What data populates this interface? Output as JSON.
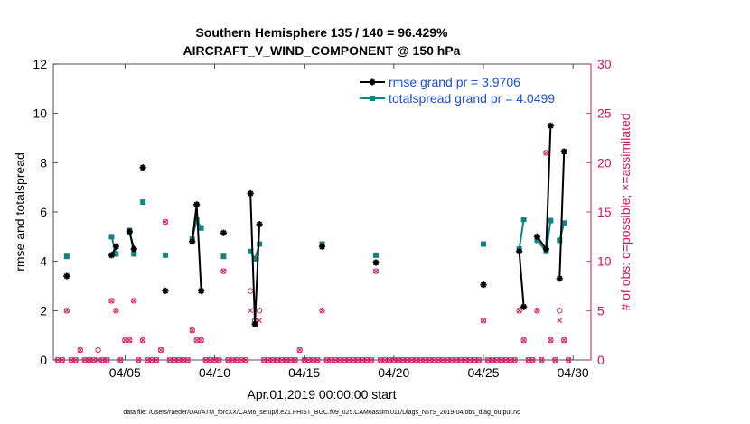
{
  "chart_data": {
    "type": "line",
    "title": [
      "Southern Hemisphere 135 / 140 = 96.429%",
      "AIRCRAFT_V_WIND_COMPONENT @ 150 hPa"
    ],
    "xlabel": "Apr.01,2019 00:00:00 start",
    "ylabel_left": "rmse and totalspread",
    "ylabel_right": "# of obs: o=possible; ×=assimilated",
    "footer": "data file: /Users/raeder/DAI/ATM_forcXX/CAM6_setup/f.e21.FHIST_BGC.f09_025.CAM6assim.011/Diags_NTrS_2019-04/obs_diag_output.nc",
    "xlim": [
      1.0,
      31.0
    ],
    "ylim_left": [
      0,
      12
    ],
    "ylim_right": [
      0,
      30
    ],
    "x_ticks": [
      5,
      10,
      15,
      20,
      25,
      30
    ],
    "x_tick_labels": [
      "04/05",
      "04/10",
      "04/15",
      "04/20",
      "04/25",
      "04/30"
    ],
    "y_ticks_left": [
      0,
      2,
      4,
      6,
      8,
      10,
      12
    ],
    "y_ticks_right": [
      0,
      5,
      10,
      15,
      20,
      25,
      30
    ],
    "colors": {
      "rmse": "#000000",
      "spread": "#0f8484",
      "obs": "#d6125e",
      "legend_text": "#1a4fd0"
    },
    "legend": [
      {
        "name": "rmse grand pr = 3.9706"
      },
      {
        "name": "totalspread grand pr = 4.0499"
      }
    ],
    "series": [
      {
        "name": "rmse",
        "points": [
          [
            1.75,
            3.4
          ],
          null,
          [
            4.25,
            4.25
          ],
          [
            4.5,
            4.6
          ],
          null,
          [
            5.25,
            5.2
          ],
          [
            5.5,
            4.5
          ],
          null,
          [
            6,
            7.8
          ],
          null,
          [
            7.25,
            2.8
          ],
          null,
          [
            8.75,
            4.8
          ],
          [
            9,
            6.3
          ],
          [
            9.25,
            2.8
          ],
          null,
          [
            10.5,
            5.15
          ],
          null,
          [
            12,
            6.75
          ],
          [
            12.25,
            1.45
          ],
          [
            12.5,
            5.5
          ],
          null,
          [
            16,
            4.6
          ],
          null,
          [
            19,
            3.95
          ],
          null,
          [
            25,
            3.05
          ],
          null,
          [
            27,
            4.4
          ],
          [
            27.25,
            2.15
          ],
          null,
          [
            28,
            5
          ],
          [
            28.5,
            4.5
          ],
          [
            28.75,
            9.5
          ],
          null,
          [
            29.25,
            3.3
          ],
          [
            29.5,
            8.45
          ]
        ]
      },
      {
        "name": "totalspread",
        "points": [
          [
            1.75,
            4.2
          ],
          null,
          [
            4.25,
            5
          ],
          [
            4.5,
            4.3
          ],
          null,
          [
            5.25,
            5.25
          ],
          [
            5.5,
            4.3
          ],
          null,
          [
            6,
            6.4
          ],
          null,
          [
            7.25,
            4.25
          ],
          null,
          [
            8.75,
            4.9
          ],
          [
            9,
            5.7
          ],
          [
            9.25,
            5.35
          ],
          null,
          [
            10.5,
            4.2
          ],
          null,
          [
            12,
            4.4
          ],
          [
            12.25,
            4.1
          ],
          [
            12.5,
            4.7
          ],
          null,
          [
            16,
            4.7
          ],
          null,
          [
            19,
            4.25
          ],
          null,
          [
            25,
            4.7
          ],
          null,
          [
            27,
            4.5
          ],
          [
            27.25,
            5.7
          ],
          null,
          [
            28,
            4.85
          ],
          [
            28.5,
            4.4
          ],
          [
            28.75,
            5.65
          ],
          null,
          [
            29.25,
            4.85
          ],
          [
            29.5,
            5.55
          ]
        ]
      },
      {
        "name": "obs_possible",
        "points": [
          [
            1.25,
            0
          ],
          [
            1.5,
            0
          ],
          [
            1.75,
            5
          ],
          [
            2,
            0
          ],
          [
            2.25,
            0
          ],
          [
            2.5,
            1
          ],
          [
            2.75,
            0
          ],
          [
            3,
            0
          ],
          [
            3.25,
            0
          ],
          [
            3.5,
            1
          ],
          [
            3.75,
            0
          ],
          [
            4,
            0
          ],
          [
            4.25,
            6
          ],
          [
            4.5,
            5
          ],
          [
            4.75,
            0
          ],
          [
            5,
            2
          ],
          [
            5.25,
            2
          ],
          [
            5.5,
            6
          ],
          [
            5.75,
            0
          ],
          [
            6,
            2
          ],
          [
            6.25,
            0
          ],
          [
            6.5,
            0
          ],
          [
            6.75,
            0
          ],
          [
            7,
            1
          ],
          [
            7.25,
            14
          ],
          [
            7.5,
            0
          ],
          [
            7.75,
            0
          ],
          [
            8,
            0
          ],
          [
            8.25,
            0
          ],
          [
            8.5,
            0
          ],
          [
            8.75,
            3
          ],
          [
            9,
            2
          ],
          [
            9.25,
            2
          ],
          [
            9.5,
            0
          ],
          [
            9.75,
            0
          ],
          [
            10,
            0
          ],
          [
            10.25,
            0
          ],
          [
            10.5,
            9
          ],
          [
            10.75,
            0
          ],
          [
            11,
            0
          ],
          [
            11.25,
            0
          ],
          [
            11.5,
            0
          ],
          [
            11.75,
            0
          ],
          [
            12,
            7
          ],
          [
            12.25,
            4
          ],
          [
            12.5,
            5
          ],
          [
            12.75,
            0
          ],
          [
            13,
            0
          ],
          [
            13.25,
            0
          ],
          [
            13.5,
            0
          ],
          [
            13.75,
            0
          ],
          [
            14,
            0
          ],
          [
            14.25,
            0
          ],
          [
            14.5,
            0
          ],
          [
            14.75,
            1
          ],
          [
            15,
            0
          ],
          [
            15.25,
            0
          ],
          [
            15.5,
            0
          ],
          [
            15.75,
            0
          ],
          [
            16,
            5
          ],
          [
            16.25,
            0
          ],
          [
            16.5,
            0
          ],
          [
            16.75,
            0
          ],
          [
            17,
            0
          ],
          [
            17.25,
            0
          ],
          [
            17.5,
            0
          ],
          [
            17.75,
            0
          ],
          [
            18,
            0
          ],
          [
            18.25,
            0
          ],
          [
            18.5,
            0
          ],
          [
            18.75,
            0
          ],
          [
            19,
            9
          ],
          [
            19.25,
            0
          ],
          [
            19.5,
            0
          ],
          [
            19.75,
            0
          ],
          [
            20,
            0
          ],
          [
            20.25,
            0
          ],
          [
            20.5,
            0
          ],
          [
            20.75,
            0
          ],
          [
            21,
            0
          ],
          [
            21.25,
            0
          ],
          [
            21.5,
            0
          ],
          [
            21.75,
            0
          ],
          [
            22,
            0
          ],
          [
            22.25,
            0
          ],
          [
            22.5,
            0
          ],
          [
            22.75,
            0
          ],
          [
            23,
            0
          ],
          [
            23.25,
            0
          ],
          [
            23.5,
            0
          ],
          [
            23.75,
            0
          ],
          [
            24,
            0
          ],
          [
            24.25,
            0
          ],
          [
            24.5,
            0
          ],
          [
            24.75,
            0
          ],
          [
            25,
            4
          ],
          [
            25.25,
            0
          ],
          [
            25.5,
            0
          ],
          [
            25.75,
            0
          ],
          [
            26,
            0
          ],
          [
            26.25,
            0
          ],
          [
            26.5,
            0
          ],
          [
            26.75,
            0
          ],
          [
            27,
            5
          ],
          [
            27.25,
            2
          ],
          [
            27.5,
            0
          ],
          [
            27.75,
            0
          ],
          [
            28,
            5
          ],
          [
            28.25,
            0
          ],
          [
            28.5,
            21
          ],
          [
            28.75,
            2
          ],
          [
            29,
            0
          ],
          [
            29.25,
            5
          ],
          [
            29.5,
            2
          ],
          [
            29.75,
            0
          ]
        ]
      },
      {
        "name": "obs_assimilated",
        "points": [
          [
            1.25,
            0
          ],
          [
            1.5,
            0
          ],
          [
            1.75,
            5
          ],
          [
            2,
            0
          ],
          [
            2.25,
            0
          ],
          [
            2.5,
            1
          ],
          [
            2.75,
            0
          ],
          [
            3,
            0
          ],
          [
            3.25,
            0
          ],
          [
            3.5,
            0
          ],
          [
            3.75,
            0
          ],
          [
            4,
            0
          ],
          [
            4.25,
            6
          ],
          [
            4.5,
            5
          ],
          [
            4.75,
            0
          ],
          [
            5,
            2
          ],
          [
            5.25,
            2
          ],
          [
            5.5,
            6
          ],
          [
            5.75,
            0
          ],
          [
            6,
            2
          ],
          [
            6.25,
            0
          ],
          [
            6.5,
            0
          ],
          [
            6.75,
            0
          ],
          [
            7,
            1
          ],
          [
            7.25,
            14
          ],
          [
            7.5,
            0
          ],
          [
            7.75,
            0
          ],
          [
            8,
            0
          ],
          [
            8.25,
            0
          ],
          [
            8.5,
            0
          ],
          [
            8.75,
            3
          ],
          [
            9,
            2
          ],
          [
            9.25,
            2
          ],
          [
            9.5,
            0
          ],
          [
            9.75,
            0
          ],
          [
            10,
            0
          ],
          [
            10.25,
            0
          ],
          [
            10.5,
            9
          ],
          [
            10.75,
            0
          ],
          [
            11,
            0
          ],
          [
            11.25,
            0
          ],
          [
            11.5,
            0
          ],
          [
            11.75,
            0
          ],
          [
            12,
            5
          ],
          [
            12.25,
            4
          ],
          [
            12.5,
            4
          ],
          [
            12.75,
            0
          ],
          [
            13,
            0
          ],
          [
            13.25,
            0
          ],
          [
            13.5,
            0
          ],
          [
            13.75,
            0
          ],
          [
            14,
            0
          ],
          [
            14.25,
            0
          ],
          [
            14.5,
            0
          ],
          [
            14.75,
            1
          ],
          [
            15,
            0
          ],
          [
            15.25,
            0
          ],
          [
            15.5,
            0
          ],
          [
            15.75,
            0
          ],
          [
            16,
            5
          ],
          [
            16.25,
            0
          ],
          [
            16.5,
            0
          ],
          [
            16.75,
            0
          ],
          [
            17,
            0
          ],
          [
            17.25,
            0
          ],
          [
            17.5,
            0
          ],
          [
            17.75,
            0
          ],
          [
            18,
            0
          ],
          [
            18.25,
            0
          ],
          [
            18.5,
            0
          ],
          [
            18.75,
            0
          ],
          [
            19,
            9
          ],
          [
            19.25,
            0
          ],
          [
            19.5,
            0
          ],
          [
            19.75,
            0
          ],
          [
            20,
            0
          ],
          [
            20.25,
            0
          ],
          [
            20.5,
            0
          ],
          [
            20.75,
            0
          ],
          [
            21,
            0
          ],
          [
            21.25,
            0
          ],
          [
            21.5,
            0
          ],
          [
            21.75,
            0
          ],
          [
            22,
            0
          ],
          [
            22.25,
            0
          ],
          [
            22.5,
            0
          ],
          [
            22.75,
            0
          ],
          [
            23,
            0
          ],
          [
            23.25,
            0
          ],
          [
            23.5,
            0
          ],
          [
            23.75,
            0
          ],
          [
            24,
            0
          ],
          [
            24.25,
            0
          ],
          [
            24.5,
            0
          ],
          [
            24.75,
            0
          ],
          [
            25,
            4
          ],
          [
            25.25,
            0
          ],
          [
            25.5,
            0
          ],
          [
            25.75,
            0
          ],
          [
            26,
            0
          ],
          [
            26.25,
            0
          ],
          [
            26.5,
            0
          ],
          [
            26.75,
            0
          ],
          [
            27,
            5
          ],
          [
            27.25,
            2
          ],
          [
            27.5,
            0
          ],
          [
            27.75,
            0
          ],
          [
            28,
            5
          ],
          [
            28.25,
            0
          ],
          [
            28.5,
            21
          ],
          [
            28.75,
            2
          ],
          [
            29,
            0
          ],
          [
            29.25,
            4
          ],
          [
            29.5,
            2
          ],
          [
            29.75,
            0
          ]
        ]
      }
    ]
  }
}
